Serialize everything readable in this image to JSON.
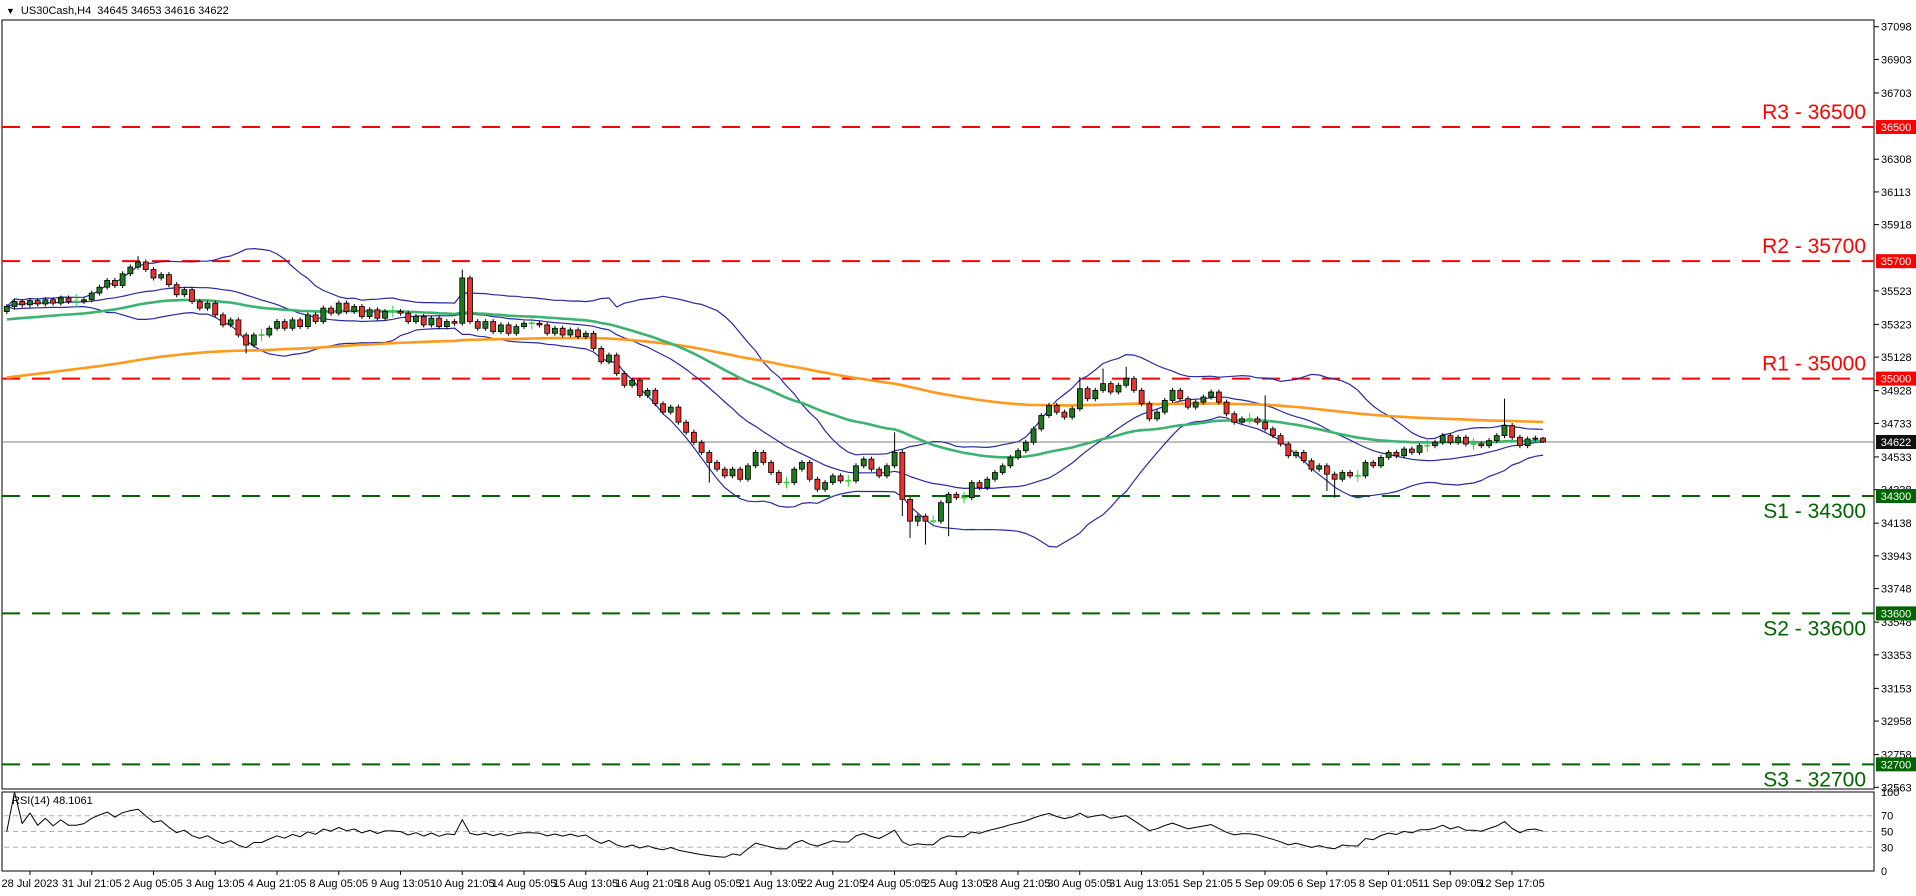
{
  "window": {
    "title": "US30Cash,H4",
    "ohlc_readout": "34645 34653 34616 34622",
    "dropdown_icon": "▼"
  },
  "colors": {
    "background": "#ffffff",
    "border": "#000000",
    "bull": "#1f7a1f",
    "bear": "#e43430",
    "doji": "#33cc33",
    "wick": "#000000",
    "bollinger": "#2a2aa0",
    "ma_fast": "#3cb371",
    "ma_slow": "#ff9a1f",
    "resistance": "#ff0000",
    "support": "#006400",
    "current_price": "#808080",
    "current_price_box": "#101010",
    "axis_text": "#000000",
    "rsi_line": "#000000",
    "rsi_grid": "#b0b0b0"
  },
  "chart_data": {
    "type": "candlestick",
    "symbol": "US30Cash",
    "timeframe": "H4",
    "current": {
      "open": 34645,
      "high": 34653,
      "low": 34616,
      "close": 34622
    },
    "y_axis": {
      "price_max": 37138,
      "price_min": 32553,
      "ticks": [
        37098,
        36903,
        36703,
        36308,
        36113,
        35918,
        35523,
        35323,
        35128,
        34928,
        34733,
        34533,
        34338,
        34138,
        33943,
        33748,
        33548,
        33353,
        33153,
        32958,
        32758,
        32563
      ]
    },
    "levels": [
      {
        "name": "R3",
        "price": 36500,
        "label": "R3 - 36500",
        "box": "36500",
        "kind": "resistance",
        "label_side": "above"
      },
      {
        "name": "R2",
        "price": 35700,
        "label": "R2 - 35700",
        "box": "35700",
        "kind": "resistance",
        "label_side": "above"
      },
      {
        "name": "R1",
        "price": 35000,
        "label": "R1 - 35000",
        "box": "35000",
        "kind": "resistance",
        "label_side": "above"
      },
      {
        "name": "S1",
        "price": 34300,
        "label": "S1 - 34300",
        "box": "34300",
        "kind": "support",
        "label_side": "below"
      },
      {
        "name": "S2",
        "price": 33600,
        "label": "S2 - 33600",
        "box": "33600",
        "kind": "support",
        "label_side": "below"
      },
      {
        "name": "S3",
        "price": 32700,
        "label": "S3 - 32700",
        "box": "32700",
        "kind": "support",
        "label_side": "below"
      }
    ],
    "current_price_line": {
      "price": 34622,
      "box": "34622"
    },
    "x_labels": [
      "28 Jul 2023",
      "31 Jul 21:05",
      "2 Aug 05:05",
      "3 Aug 13:05",
      "4 Aug 21:05",
      "8 Aug 05:05",
      "9 Aug 13:05",
      "10 Aug 21:05",
      "14 Aug 05:05",
      "15 Aug 13:05",
      "16 Aug 21:05",
      "18 Aug 05:05",
      "21 Aug 13:05",
      "22 Aug 21:05",
      "24 Aug 05:05",
      "25 Aug 13:05",
      "28 Aug 21:05",
      "30 Aug 05:05",
      "31 Aug 13:05",
      "1 Sep 21:05",
      "5 Sep 09:05",
      "6 Sep 17:05",
      "8 Sep 01:05",
      "11 Sep 09:05",
      "12 Sep 17:05"
    ],
    "overlays": {
      "bollinger": {
        "period": 20,
        "deviation": 2
      },
      "ma_fast": {
        "period": 50,
        "method": "ema",
        "seed": 35350
      },
      "ma_slow": {
        "period": 150,
        "method": "ema",
        "seed": 35000
      }
    },
    "rsi": {
      "label": "RSI(14) 48.1061",
      "period": 14,
      "value": 48.1061,
      "scale_labels": [
        100,
        70,
        50,
        30,
        0
      ],
      "gridlines": [
        70,
        50,
        30
      ]
    },
    "candles": [
      [
        35400,
        35445,
        35385,
        35430
      ],
      [
        35430,
        35475,
        35415,
        35460
      ],
      [
        35460,
        35475,
        35425,
        35440
      ],
      [
        35440,
        35480,
        35425,
        35465
      ],
      [
        35465,
        35480,
        35430,
        35445
      ],
      [
        35445,
        35485,
        35430,
        35470
      ],
      [
        35470,
        35485,
        35435,
        35450
      ],
      [
        35450,
        35495,
        35435,
        35480
      ],
      [
        35480,
        35495,
        35445,
        35460
      ],
      [
        35460,
        35505,
        35425,
        35460
      ],
      [
        35460,
        35485,
        35445,
        35470
      ],
      [
        35470,
        35525,
        35455,
        35510
      ],
      [
        35510,
        35560,
        35495,
        35545
      ],
      [
        35545,
        35600,
        35530,
        35585
      ],
      [
        35585,
        35600,
        35540,
        35555
      ],
      [
        35555,
        35640,
        35540,
        35625
      ],
      [
        35625,
        35680,
        35610,
        35665
      ],
      [
        35665,
        35730,
        35650,
        35695
      ],
      [
        35695,
        35710,
        35635,
        35650
      ],
      [
        35650,
        35665,
        35585,
        35600
      ],
      [
        35600,
        35635,
        35585,
        35620
      ],
      [
        35620,
        35635,
        35545,
        35560
      ],
      [
        35560,
        35575,
        35485,
        35500
      ],
      [
        35500,
        35545,
        35485,
        35530
      ],
      [
        35530,
        35545,
        35445,
        35460
      ],
      [
        35460,
        35475,
        35405,
        35420
      ],
      [
        35420,
        35465,
        35405,
        35450
      ],
      [
        35450,
        35465,
        35365,
        35380
      ],
      [
        35380,
        35395,
        35305,
        35320
      ],
      [
        35320,
        35365,
        35305,
        35350
      ],
      [
        35350,
        35365,
        35245,
        35260
      ],
      [
        35260,
        35275,
        35150,
        35200
      ],
      [
        35200,
        35275,
        35185,
        35260
      ],
      [
        35260,
        35295,
        35225,
        35260
      ],
      [
        35260,
        35315,
        35245,
        35300
      ],
      [
        35300,
        35355,
        35285,
        35340
      ],
      [
        35340,
        35355,
        35285,
        35300
      ],
      [
        35300,
        35365,
        35285,
        35350
      ],
      [
        35350,
        35365,
        35295,
        35310
      ],
      [
        35310,
        35395,
        35295,
        35380
      ],
      [
        35380,
        35395,
        35325,
        35340
      ],
      [
        35340,
        35435,
        35325,
        35420
      ],
      [
        35420,
        35435,
        35375,
        35390
      ],
      [
        35390,
        35465,
        35375,
        35450
      ],
      [
        35450,
        35465,
        35385,
        35400
      ],
      [
        35400,
        35445,
        35385,
        35430
      ],
      [
        35430,
        35445,
        35355,
        35370
      ],
      [
        35370,
        35425,
        35355,
        35410
      ],
      [
        35410,
        35425,
        35345,
        35360
      ],
      [
        35360,
        35415,
        35345,
        35400
      ],
      [
        35400,
        35435,
        35365,
        35400
      ],
      [
        35400,
        35415,
        35375,
        35390
      ],
      [
        35390,
        35405,
        35325,
        35340
      ],
      [
        35340,
        35385,
        35325,
        35370
      ],
      [
        35370,
        35385,
        35305,
        35320
      ],
      [
        35320,
        35375,
        35305,
        35360
      ],
      [
        35360,
        35375,
        35295,
        35310
      ],
      [
        35310,
        35355,
        35295,
        35340
      ],
      [
        35340,
        35355,
        35315,
        35330
      ],
      [
        35330,
        35650,
        35315,
        35600
      ],
      [
        35600,
        35615,
        35325,
        35340
      ],
      [
        35340,
        35355,
        35285,
        35300
      ],
      [
        35300,
        35355,
        35285,
        35340
      ],
      [
        35340,
        35355,
        35265,
        35280
      ],
      [
        35280,
        35335,
        35265,
        35320
      ],
      [
        35320,
        35335,
        35255,
        35270
      ],
      [
        35270,
        35325,
        35255,
        35310
      ],
      [
        35310,
        35345,
        35295,
        35330
      ],
      [
        35330,
        35365,
        35295,
        35330
      ],
      [
        35330,
        35345,
        35305,
        35320
      ],
      [
        35320,
        35335,
        35255,
        35270
      ],
      [
        35270,
        35315,
        35255,
        35300
      ],
      [
        35300,
        35315,
        35245,
        35260
      ],
      [
        35260,
        35305,
        35245,
        35290
      ],
      [
        35290,
        35305,
        35235,
        35250
      ],
      [
        35250,
        35285,
        35235,
        35270
      ],
      [
        35270,
        35285,
        35165,
        35180
      ],
      [
        35180,
        35195,
        35085,
        35100
      ],
      [
        35100,
        35155,
        35085,
        35140
      ],
      [
        35140,
        35155,
        35015,
        35030
      ],
      [
        35030,
        35045,
        34945,
        34960
      ],
      [
        34960,
        35005,
        34945,
        34990
      ],
      [
        34990,
        35005,
        34885,
        34900
      ],
      [
        34900,
        34945,
        34885,
        34930
      ],
      [
        34930,
        34945,
        34835,
        34850
      ],
      [
        34850,
        34865,
        34785,
        34800
      ],
      [
        34800,
        34845,
        34785,
        34830
      ],
      [
        34830,
        34845,
        34725,
        34740
      ],
      [
        34740,
        34755,
        34665,
        34680
      ],
      [
        34680,
        34695,
        34605,
        34620
      ],
      [
        34620,
        34635,
        34545,
        34560
      ],
      [
        34560,
        34575,
        34380,
        34500
      ],
      [
        34500,
        34515,
        34445,
        34460
      ],
      [
        34460,
        34475,
        34405,
        34420
      ],
      [
        34420,
        34475,
        34405,
        34460
      ],
      [
        34460,
        34475,
        34385,
        34400
      ],
      [
        34400,
        34495,
        34385,
        34480
      ],
      [
        34480,
        34575,
        34465,
        34560
      ],
      [
        34560,
        34575,
        34485,
        34500
      ],
      [
        34500,
        34515,
        34425,
        34440
      ],
      [
        34440,
        34455,
        34365,
        34380
      ],
      [
        34380,
        34415,
        34345,
        34380
      ],
      [
        34380,
        34475,
        34365,
        34460
      ],
      [
        34460,
        34515,
        34445,
        34500
      ],
      [
        34500,
        34515,
        34385,
        34400
      ],
      [
        34400,
        34415,
        34325,
        34340
      ],
      [
        34340,
        34395,
        34325,
        34380
      ],
      [
        34380,
        34435,
        34365,
        34420
      ],
      [
        34420,
        34435,
        34375,
        34390
      ],
      [
        34390,
        34425,
        34355,
        34390
      ],
      [
        34390,
        34495,
        34375,
        34480
      ],
      [
        34480,
        34535,
        34465,
        34520
      ],
      [
        34520,
        34535,
        34445,
        34460
      ],
      [
        34460,
        34475,
        34405,
        34420
      ],
      [
        34420,
        34495,
        34405,
        34480
      ],
      [
        34480,
        34680,
        34465,
        34560
      ],
      [
        34560,
        34575,
        34180,
        34280
      ],
      [
        34280,
        34295,
        34050,
        34150
      ],
      [
        34150,
        34195,
        34120,
        34180
      ],
      [
        34180,
        34195,
        34010,
        34150
      ],
      [
        34150,
        34185,
        34115,
        34150
      ],
      [
        34150,
        34275,
        34135,
        34260
      ],
      [
        34260,
        34325,
        34060,
        34310
      ],
      [
        34310,
        34325,
        34275,
        34290
      ],
      [
        34290,
        34325,
        34255,
        34290
      ],
      [
        34290,
        34395,
        34275,
        34380
      ],
      [
        34380,
        34395,
        34335,
        34350
      ],
      [
        34350,
        34415,
        34335,
        34400
      ],
      [
        34400,
        34455,
        34385,
        34440
      ],
      [
        34440,
        34495,
        34425,
        34480
      ],
      [
        34480,
        34545,
        34465,
        34530
      ],
      [
        34530,
        34585,
        34515,
        34570
      ],
      [
        34570,
        34635,
        34555,
        34620
      ],
      [
        34620,
        34715,
        34605,
        34700
      ],
      [
        34700,
        34795,
        34685,
        34780
      ],
      [
        34780,
        34855,
        34765,
        34840
      ],
      [
        34840,
        34855,
        34785,
        34800
      ],
      [
        34800,
        34815,
        34755,
        34770
      ],
      [
        34770,
        34835,
        34755,
        34820
      ],
      [
        34820,
        35010,
        34805,
        34940
      ],
      [
        34940,
        34955,
        34865,
        34880
      ],
      [
        34880,
        34945,
        34865,
        34930
      ],
      [
        34930,
        35060,
        34915,
        34970
      ],
      [
        34970,
        34985,
        34905,
        34920
      ],
      [
        34920,
        34975,
        34905,
        34960
      ],
      [
        34960,
        35070,
        34945,
        35000
      ],
      [
        35000,
        35015,
        34915,
        34930
      ],
      [
        34930,
        34945,
        34835,
        34850
      ],
      [
        34850,
        34865,
        34745,
        34760
      ],
      [
        34760,
        34815,
        34745,
        34800
      ],
      [
        34800,
        34885,
        34785,
        34870
      ],
      [
        34870,
        34945,
        34855,
        34930
      ],
      [
        34930,
        34945,
        34865,
        34880
      ],
      [
        34880,
        34895,
        34815,
        34830
      ],
      [
        34830,
        34875,
        34815,
        34860
      ],
      [
        34860,
        34905,
        34845,
        34890
      ],
      [
        34890,
        34935,
        34875,
        34920
      ],
      [
        34920,
        34935,
        34845,
        34860
      ],
      [
        34860,
        34875,
        34775,
        34790
      ],
      [
        34790,
        34805,
        34725,
        34740
      ],
      [
        34740,
        34775,
        34725,
        34760
      ],
      [
        34760,
        34795,
        34725,
        34760
      ],
      [
        34760,
        34775,
        34725,
        34740
      ],
      [
        34740,
        34900,
        34685,
        34700
      ],
      [
        34700,
        34715,
        34645,
        34660
      ],
      [
        34660,
        34675,
        34595,
        34610
      ],
      [
        34610,
        34625,
        34525,
        34540
      ],
      [
        34540,
        34575,
        34525,
        34560
      ],
      [
        34560,
        34575,
        34495,
        34510
      ],
      [
        34510,
        34525,
        34445,
        34460
      ],
      [
        34460,
        34495,
        34445,
        34480
      ],
      [
        34480,
        34495,
        34330,
        34430
      ],
      [
        34430,
        34445,
        34290,
        34400
      ],
      [
        34400,
        34455,
        34385,
        34440
      ],
      [
        34440,
        34455,
        34405,
        34420
      ],
      [
        34420,
        34455,
        34385,
        34420
      ],
      [
        34420,
        34515,
        34405,
        34500
      ],
      [
        34500,
        34515,
        34465,
        34480
      ],
      [
        34480,
        34545,
        34465,
        34530
      ],
      [
        34530,
        34575,
        34515,
        34560
      ],
      [
        34560,
        34575,
        34525,
        34540
      ],
      [
        34540,
        34595,
        34525,
        34580
      ],
      [
        34580,
        34595,
        34545,
        34560
      ],
      [
        34560,
        34615,
        34545,
        34600
      ],
      [
        34600,
        34635,
        34565,
        34600
      ],
      [
        34600,
        34635,
        34585,
        34620
      ],
      [
        34620,
        34675,
        34605,
        34660
      ],
      [
        34660,
        34675,
        34605,
        34620
      ],
      [
        34620,
        34665,
        34605,
        34650
      ],
      [
        34650,
        34665,
        34595,
        34610
      ],
      [
        34610,
        34645,
        34575,
        34610
      ],
      [
        34610,
        34625,
        34585,
        34600
      ],
      [
        34600,
        34645,
        34585,
        34630
      ],
      [
        34630,
        34675,
        34615,
        34660
      ],
      [
        34660,
        34880,
        34645,
        34720
      ],
      [
        34720,
        34735,
        34635,
        34650
      ],
      [
        34650,
        34665,
        34585,
        34600
      ],
      [
        34600,
        34655,
        34585,
        34640
      ],
      [
        34640,
        34660,
        34625,
        34645
      ],
      [
        34645,
        34653,
        34616,
        34622
      ]
    ]
  }
}
